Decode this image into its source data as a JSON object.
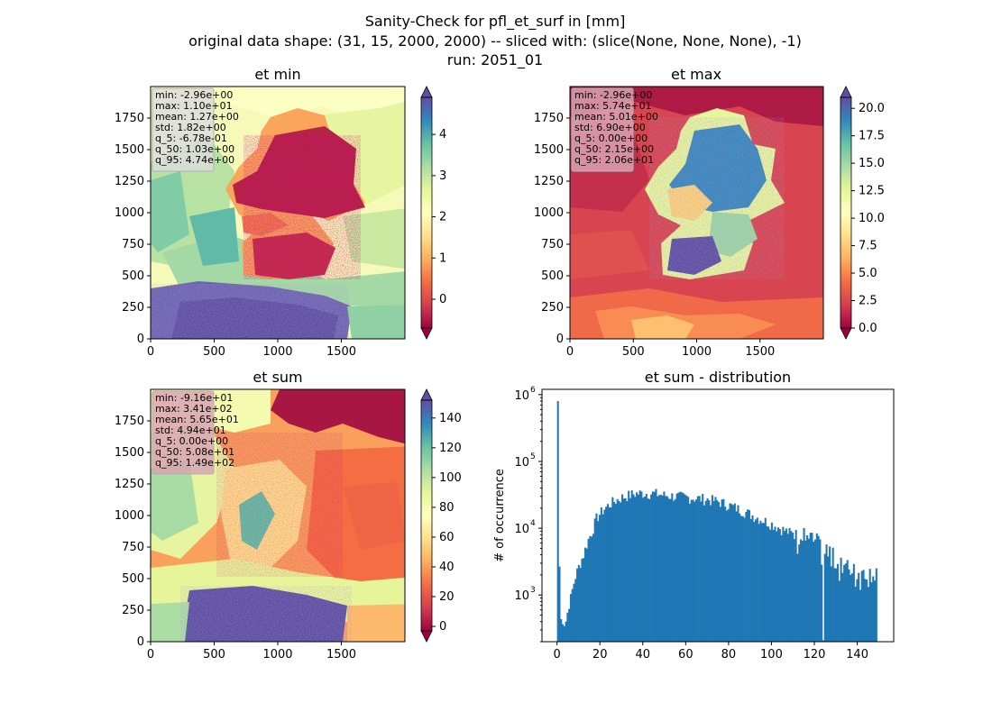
{
  "figure": {
    "title_lines": [
      "Sanity-Check for pfl_et_surf in [mm]",
      "original data shape: (31, 15, 2000, 2000) -- sliced with: (slice(None, None, None), -1)",
      "run: 2051_01"
    ]
  },
  "chart_data": [
    {
      "type": "heatmap",
      "title": "et min",
      "colormap": "Spectral",
      "xlim": [
        0,
        2000
      ],
      "ylim": [
        0,
        2000
      ],
      "xticks": [
        "0",
        "500",
        "1000",
        "1500"
      ],
      "xtick_values": [
        0,
        500,
        1000,
        1500
      ],
      "yticks": [
        "0",
        "250",
        "500",
        "750",
        "1000",
        "1250",
        "1500",
        "1750"
      ],
      "ytick_values": [
        0,
        250,
        500,
        750,
        1000,
        1250,
        1500,
        1750
      ],
      "colorbar": {
        "range": [
          -0.7,
          4.9
        ],
        "ticks": [
          "0",
          "1",
          "2",
          "3",
          "4"
        ],
        "tick_values": [
          0,
          1,
          2,
          3,
          4
        ],
        "extend": "both"
      },
      "stats": [
        "min: -2.96e+00",
        "max: 1.10e+01",
        "mean: 1.27e+00",
        "std: 1.82e+00",
        "q_5: -6.78e-01",
        "q_50: 1.03e+00",
        "q_95: 4.74e+00"
      ],
      "stats_box_color": "#dcdcdc"
    },
    {
      "type": "heatmap",
      "title": "et max",
      "colormap": "Spectral",
      "xlim": [
        0,
        2000
      ],
      "ylim": [
        0,
        2000
      ],
      "xticks": [
        "0",
        "500",
        "1000",
        "1500"
      ],
      "xtick_values": [
        0,
        500,
        1000,
        1500
      ],
      "yticks": [
        "0",
        "250",
        "500",
        "750",
        "1000",
        "1250",
        "1500",
        "1750"
      ],
      "ytick_values": [
        0,
        250,
        500,
        750,
        1000,
        1250,
        1500,
        1750
      ],
      "colorbar": {
        "range": [
          0,
          21
        ],
        "ticks": [
          "0.0",
          "2.5",
          "5.0",
          "7.5",
          "10.0",
          "12.5",
          "15.0",
          "17.5",
          "20.0"
        ],
        "tick_values": [
          0,
          2.5,
          5,
          7.5,
          10,
          12.5,
          15,
          17.5,
          20
        ],
        "extend": "both"
      },
      "stats": [
        "min: -2.96e+00",
        "max: 5.74e+01",
        "mean: 5.01e+00",
        "std: 6.90e+00",
        "q_5: 0.00e+00",
        "q_50: 2.15e+00",
        "q_95: 2.06e+01"
      ],
      "stats_box_color": "#d9a3b4"
    },
    {
      "type": "heatmap",
      "title": "et sum",
      "colormap": "Spectral",
      "xlim": [
        0,
        2000
      ],
      "ylim": [
        0,
        2000
      ],
      "xticks": [
        "0",
        "500",
        "1000",
        "1500"
      ],
      "xtick_values": [
        0,
        500,
        1000,
        1500
      ],
      "yticks": [
        "0",
        "250",
        "500",
        "750",
        "1000",
        "1250",
        "1500",
        "1750"
      ],
      "ytick_values": [
        0,
        250,
        500,
        750,
        1000,
        1250,
        1500,
        1750
      ],
      "colorbar": {
        "range": [
          -3,
          152
        ],
        "ticks": [
          "0",
          "20",
          "40",
          "60",
          "80",
          "100",
          "120",
          "140"
        ],
        "tick_values": [
          0,
          20,
          40,
          60,
          80,
          100,
          120,
          140
        ],
        "extend": "both"
      },
      "stats": [
        "min: -9.16e+01",
        "max: 3.41e+02",
        "mean: 5.65e+01",
        "std: 4.94e+01",
        "q_5: 0.00e+00",
        "q_50: 5.08e+01",
        "q_95: 1.49e+02"
      ],
      "stats_box_color": "#d9a3b4"
    },
    {
      "type": "bar",
      "title": "et sum - distribution",
      "ylabel": "# of occurrence",
      "yscale": "log",
      "bar_color": "#1f77b4",
      "xlim": [
        -7,
        157
      ],
      "ylim": [
        200,
        1200000
      ],
      "xticks": [
        "0",
        "20",
        "40",
        "60",
        "80",
        "100",
        "120",
        "140"
      ],
      "xtick_values": [
        0,
        20,
        40,
        60,
        80,
        100,
        120,
        140
      ],
      "yticks": [
        "10",
        "10",
        "10",
        "10"
      ],
      "ytick_exponents": [
        "3",
        "4",
        "5",
        "6"
      ],
      "ytick_values": [
        1000,
        10000,
        100000,
        1000000
      ],
      "x": [
        0,
        1,
        2,
        3,
        4,
        5,
        6,
        7,
        8,
        10,
        12,
        14,
        16,
        18,
        20,
        22,
        25,
        28,
        30,
        33,
        36,
        40,
        45,
        50,
        55,
        60,
        65,
        70,
        75,
        80,
        85,
        90,
        95,
        100,
        105,
        110,
        115,
        120,
        125,
        130,
        135,
        140,
        145,
        148
      ],
      "values": [
        800000,
        400,
        450,
        380,
        420,
        700,
        900,
        1300,
        1800,
        2800,
        4000,
        6500,
        9000,
        14000,
        17000,
        20000,
        24000,
        27000,
        29000,
        31000,
        33000,
        33500,
        33000,
        31000,
        30000,
        29000,
        28000,
        27000,
        25000,
        22000,
        19000,
        16000,
        13500,
        11500,
        9500,
        8000,
        6500,
        5200,
        3800,
        3000,
        2400,
        2000,
        2200,
        2100
      ]
    }
  ]
}
